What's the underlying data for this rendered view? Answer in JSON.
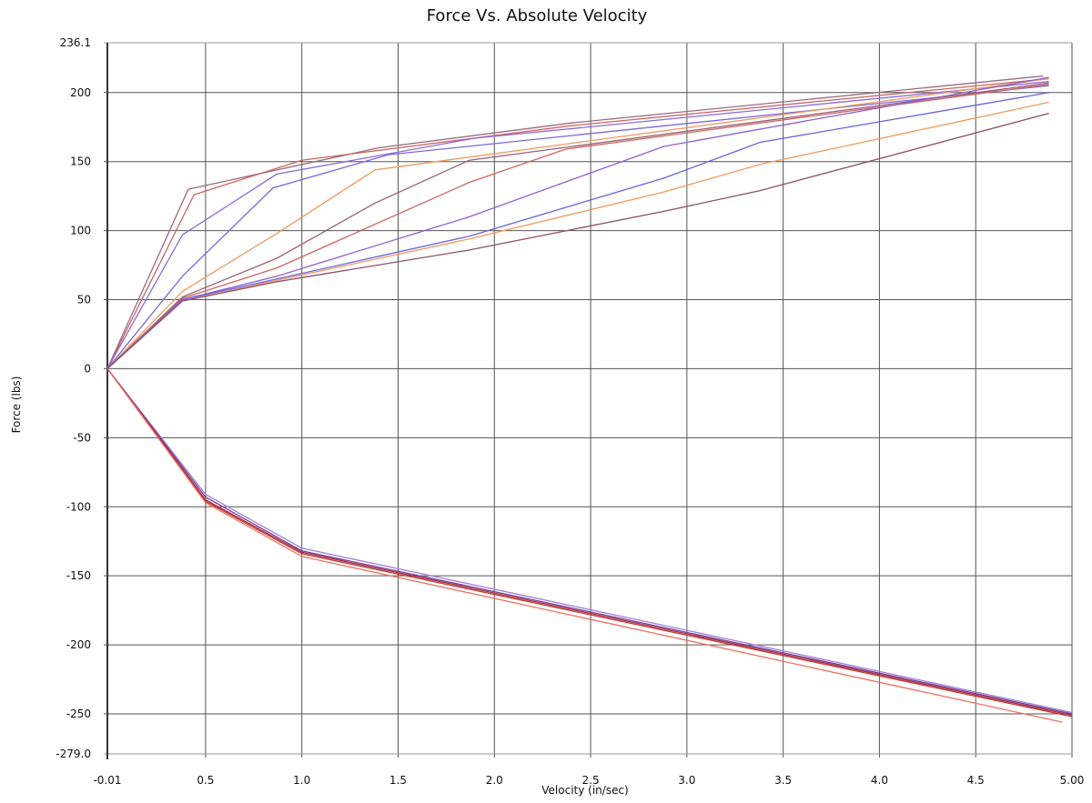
{
  "chart_data": {
    "type": "line",
    "title": "Force Vs. Absolute Velocity",
    "xlabel": "Velocity (in/sec)",
    "ylabel": "Force (lbs)",
    "xlim": [
      -0.01,
      5.0
    ],
    "ylim": [
      -279.0,
      236.1
    ],
    "x_ticks": [
      {
        "v": -0.01,
        "label": "-0.01"
      },
      {
        "v": 0.5,
        "label": "0.5"
      },
      {
        "v": 1.0,
        "label": "1.0"
      },
      {
        "v": 1.5,
        "label": "1.5"
      },
      {
        "v": 2.0,
        "label": "2.0"
      },
      {
        "v": 2.5,
        "label": "2.5"
      },
      {
        "v": 3.0,
        "label": "3.0"
      },
      {
        "v": 3.5,
        "label": "3.5"
      },
      {
        "v": 4.0,
        "label": "4.0"
      },
      {
        "v": 4.5,
        "label": "4.5"
      },
      {
        "v": 5.0,
        "label": "5.00"
      }
    ],
    "y_ticks": [
      {
        "v": 236.1,
        "label": "236.1"
      },
      {
        "v": 200,
        "label": "200"
      },
      {
        "v": 150,
        "label": "150"
      },
      {
        "v": 100,
        "label": "100"
      },
      {
        "v": 50,
        "label": "50"
      },
      {
        "v": 0,
        "label": "0"
      },
      {
        "v": -50,
        "label": "-50"
      },
      {
        "v": -100,
        "label": "-100"
      },
      {
        "v": -150,
        "label": "-150"
      },
      {
        "v": -200,
        "label": "-200"
      },
      {
        "v": -250,
        "label": "-250"
      },
      {
        "v": -279.0,
        "label": "-279.0"
      }
    ],
    "grid": true,
    "legend": "none",
    "series": [
      {
        "color": "#9b6b7e",
        "points": [
          [
            -0.01,
            0
          ],
          [
            0.41,
            130
          ],
          [
            1.4,
            160
          ],
          [
            2.4,
            178
          ],
          [
            4.85,
            212
          ]
        ]
      },
      {
        "color": "#c9655f",
        "points": [
          [
            -0.01,
            0
          ],
          [
            0.44,
            126
          ],
          [
            1.0,
            151
          ],
          [
            2.4,
            176
          ],
          [
            4.88,
            210
          ]
        ]
      },
      {
        "color": "#8a6ad8",
        "points": [
          [
            -0.01,
            0
          ],
          [
            0.38,
            97
          ],
          [
            0.87,
            141
          ],
          [
            1.9,
            167
          ],
          [
            4.88,
            208
          ]
        ]
      },
      {
        "color": "#7a68dc",
        "points": [
          [
            -0.01,
            0
          ],
          [
            0.38,
            67
          ],
          [
            0.85,
            131
          ],
          [
            1.45,
            155
          ],
          [
            4.88,
            205
          ]
        ]
      },
      {
        "color": "#ee9a62",
        "points": [
          [
            -0.01,
            0
          ],
          [
            0.38,
            56
          ],
          [
            0.87,
            98
          ],
          [
            1.38,
            144
          ],
          [
            4.88,
            210
          ]
        ]
      },
      {
        "color": "#9c5f72",
        "points": [
          [
            -0.01,
            0
          ],
          [
            0.38,
            52
          ],
          [
            0.87,
            80
          ],
          [
            1.38,
            120
          ],
          [
            1.87,
            151
          ],
          [
            4.88,
            207
          ]
        ]
      },
      {
        "color": "#d06560",
        "points": [
          [
            -0.01,
            0
          ],
          [
            0.38,
            51
          ],
          [
            0.87,
            73
          ],
          [
            1.87,
            135
          ],
          [
            2.37,
            159
          ],
          [
            4.88,
            206
          ]
        ]
      },
      {
        "color": "#8e5fd2",
        "points": [
          [
            -0.01,
            0
          ],
          [
            0.38,
            50
          ],
          [
            0.87,
            67
          ],
          [
            1.87,
            110
          ],
          [
            2.88,
            161
          ],
          [
            4.88,
            211
          ]
        ]
      },
      {
        "color": "#6a63e0",
        "points": [
          [
            -0.01,
            0
          ],
          [
            0.38,
            50
          ],
          [
            0.87,
            65
          ],
          [
            1.87,
            96
          ],
          [
            2.88,
            138
          ],
          [
            3.38,
            164
          ],
          [
            4.88,
            200
          ]
        ]
      },
      {
        "color": "#f09a5c",
        "points": [
          [
            -0.01,
            0
          ],
          [
            0.38,
            49
          ],
          [
            0.87,
            64
          ],
          [
            1.87,
            94
          ],
          [
            2.88,
            128
          ],
          [
            3.38,
            148
          ],
          [
            4.88,
            193
          ]
        ]
      },
      {
        "color": "#8e5066",
        "points": [
          [
            -0.01,
            0
          ],
          [
            0.38,
            49
          ],
          [
            0.87,
            63
          ],
          [
            1.87,
            86
          ],
          [
            2.88,
            114
          ],
          [
            3.38,
            129
          ],
          [
            4.88,
            185
          ]
        ]
      },
      {
        "color": "#a07fe0",
        "points": [
          [
            -0.01,
            0
          ],
          [
            0.5,
            -91
          ],
          [
            1.0,
            -130
          ],
          [
            5.0,
            -249
          ]
        ]
      },
      {
        "color": "#7a3a8a",
        "points": [
          [
            -0.01,
            0
          ],
          [
            0.5,
            -93
          ],
          [
            1.0,
            -132
          ],
          [
            5.0,
            -250
          ]
        ]
      },
      {
        "color": "#a02a4a",
        "points": [
          [
            -0.01,
            0
          ],
          [
            0.5,
            -95
          ],
          [
            1.0,
            -133
          ],
          [
            5.0,
            -251
          ]
        ]
      },
      {
        "color": "#c0392b",
        "points": [
          [
            -0.01,
            0
          ],
          [
            0.5,
            -96
          ],
          [
            1.0,
            -134
          ],
          [
            5.0,
            -252
          ]
        ]
      },
      {
        "color": "#f07060",
        "points": [
          [
            -0.01,
            0
          ],
          [
            0.5,
            -97
          ],
          [
            1.0,
            -136
          ],
          [
            4.95,
            -256
          ]
        ]
      }
    ]
  }
}
